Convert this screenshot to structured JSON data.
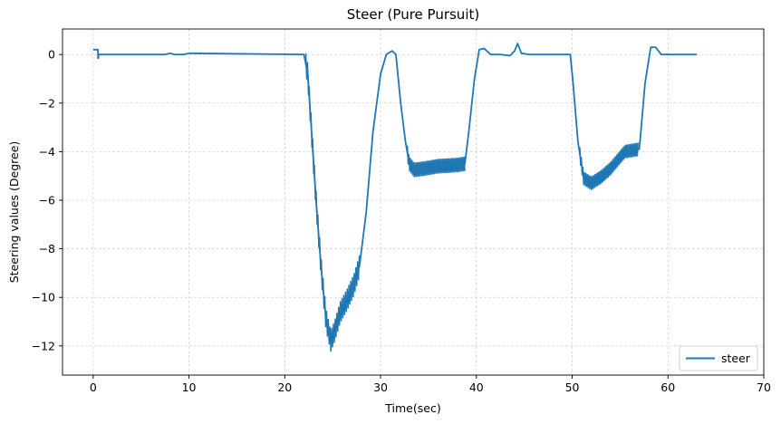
{
  "chart_data": {
    "type": "line",
    "title": "Steer (Pure Pursuit)",
    "xlabel": "Time(sec)",
    "ylabel": "Steering values (Degree)",
    "xlim": [
      -3.2,
      70
    ],
    "ylim": [
      -13.2,
      1.05
    ],
    "xticks": [
      0,
      10,
      20,
      30,
      40,
      50,
      60,
      70
    ],
    "yticks": [
      0,
      -2,
      -4,
      -6,
      -8,
      -10,
      -12
    ],
    "grid": true,
    "legend_position": "lower-right",
    "colors": {
      "steer": "#1f77b4",
      "grid": "#c8c8c8",
      "axes": "#000000"
    },
    "series": [
      {
        "name": "steer",
        "x": [
          0,
          0.5,
          0.5,
          0.55,
          0.55,
          7.5,
          8,
          8.5,
          9.5,
          10,
          22,
          22.4,
          22.8,
          23.3,
          23.8,
          24.3,
          24.8,
          25.2,
          25.8,
          26.5,
          27.2,
          27.8,
          28.5,
          29.2,
          30,
          30.6,
          31.2,
          31.6,
          32.1,
          32.6,
          33,
          33.5,
          34.5,
          36,
          38,
          38.8,
          39.2,
          39.8,
          40.3,
          40.8,
          41.5,
          42.5,
          43.5,
          44,
          44.3,
          44.7,
          45.5,
          47,
          49.8,
          50.1,
          50.6,
          51.2,
          52,
          53,
          54,
          55.5,
          57,
          57.1,
          57.6,
          58.2,
          58.7,
          59.3,
          60.5,
          63
        ],
        "y": [
          0.2,
          0.2,
          -0.15,
          -0.15,
          0,
          0,
          0.05,
          0,
          0,
          0.05,
          0,
          -0.8,
          -3.2,
          -6.2,
          -8.8,
          -10.9,
          -11.8,
          -11.4,
          -10.6,
          -10.1,
          -9.5,
          -8.7,
          -6.5,
          -3.2,
          -0.8,
          0,
          0.15,
          0,
          -2,
          -3.6,
          -4.5,
          -4.75,
          -4.7,
          -4.6,
          -4.55,
          -4.5,
          -3.2,
          -1,
          0.2,
          0.25,
          0,
          0,
          -0.05,
          0.15,
          0.45,
          0.05,
          0,
          0,
          0,
          -1.2,
          -3.6,
          -5.1,
          -5.3,
          -5.05,
          -4.7,
          -4,
          -3.9,
          -3.5,
          -1.2,
          0.3,
          0.3,
          0,
          0,
          0
        ]
      }
    ],
    "oscillation_bands": [
      {
        "x_start": 22.2,
        "x_end": 27.8,
        "amplitude": 0.45,
        "step": 0.18
      },
      {
        "x_start": 32.8,
        "x_end": 38.8,
        "amplitude": 0.3,
        "step": 0.16
      },
      {
        "x_start": 50.8,
        "x_end": 56.9,
        "amplitude": 0.28,
        "step": 0.16
      }
    ]
  }
}
